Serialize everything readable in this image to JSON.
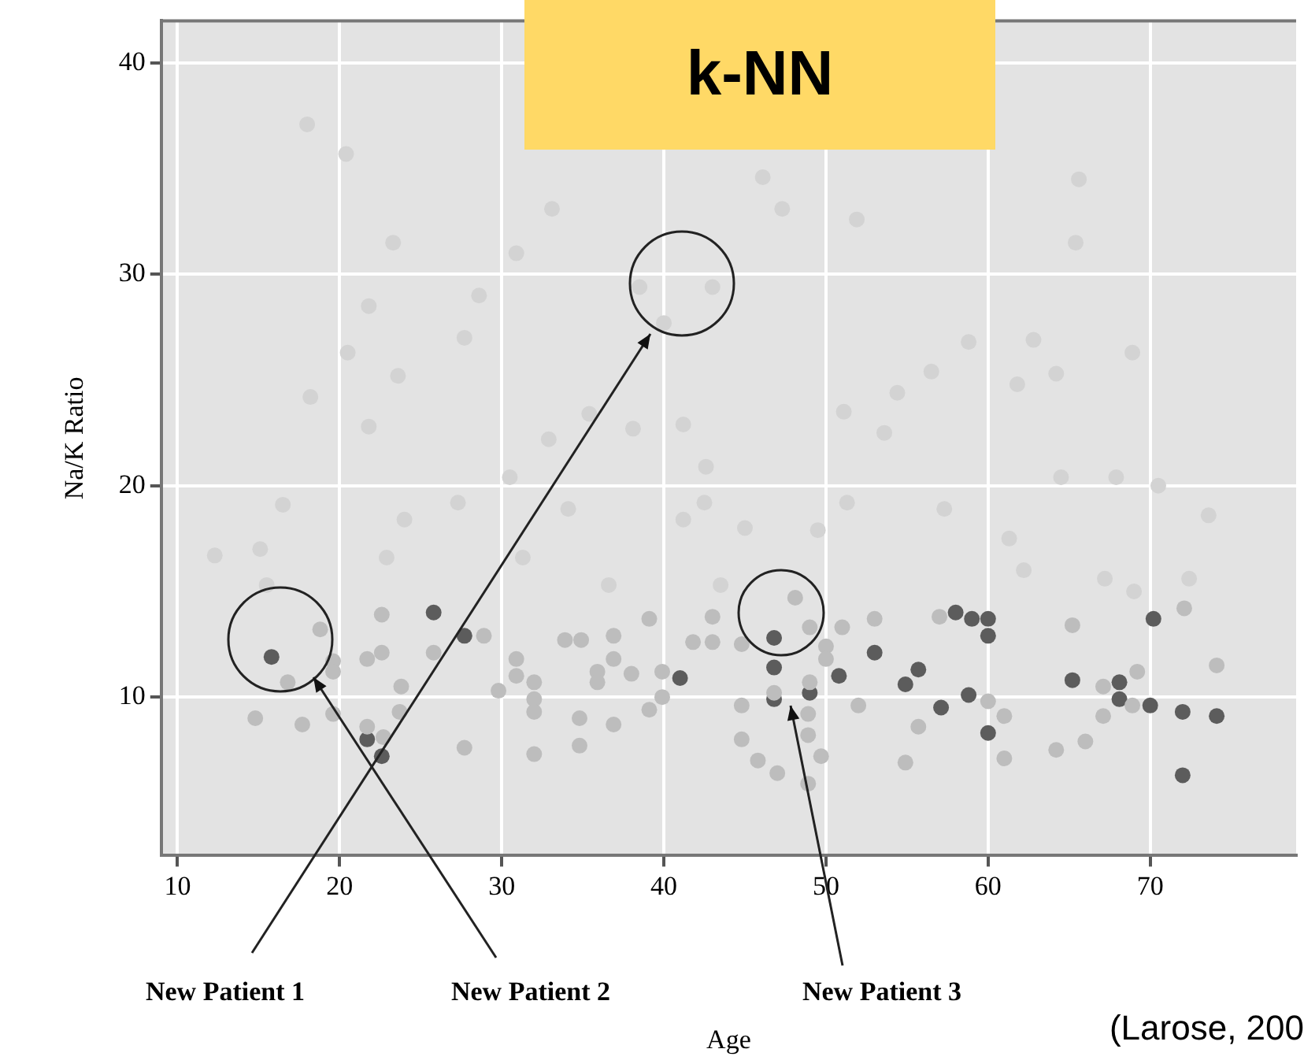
{
  "chart_data": {
    "type": "scatter",
    "title": "k-NN",
    "xlabel": "Age",
    "ylabel": "Na/K Ratio",
    "xlim": [
      9,
      79
    ],
    "ylim": [
      2.5,
      42
    ],
    "xticks": [
      10,
      20,
      30,
      40,
      50,
      60,
      70
    ],
    "yticks": [
      10,
      20,
      30,
      40
    ],
    "grid": true,
    "legend": false,
    "marker": "circle",
    "series": [
      {
        "color": "#d3d3d3",
        "x": [
          18.0,
          20.4,
          23.3,
          30.9,
          28.6,
          21.8,
          27.7,
          20.5,
          23.6,
          18.2,
          21.8,
          33.1,
          46.1,
          47.3,
          51.9,
          38.5,
          43.0,
          40.0,
          35.4,
          32.9,
          38.1,
          41.2,
          51.1,
          54.4,
          53.6,
          65.6,
          65.4,
          58.8,
          56.5,
          62.8,
          64.2,
          61.8,
          68.9,
          16.5,
          12.3,
          15.1,
          15.5,
          22.9,
          24.0,
          27.3,
          30.5,
          31.3,
          34.1,
          36.6,
          41.2,
          42.5,
          42.6,
          45.0,
          49.5,
          51.3,
          43.5,
          64.5,
          67.9,
          70.5,
          57.3,
          73.6,
          61.3,
          62.2,
          67.2,
          69.0,
          72.4
        ],
        "values": [
          37.1,
          35.7,
          31.5,
          31.0,
          29.0,
          28.5,
          27.0,
          26.3,
          25.2,
          24.2,
          22.8,
          33.1,
          34.6,
          33.1,
          32.6,
          29.4,
          29.4,
          27.7,
          23.4,
          22.2,
          22.7,
          22.9,
          23.5,
          24.4,
          22.5,
          34.5,
          31.5,
          26.8,
          25.4,
          26.9,
          25.3,
          24.8,
          26.3,
          19.1,
          16.7,
          17.0,
          15.3,
          16.6,
          18.4,
          19.2,
          20.4,
          16.6,
          18.9,
          15.3,
          18.4,
          19.2,
          20.9,
          18.0,
          17.9,
          19.2,
          15.3,
          20.4,
          20.4,
          20.0,
          18.9,
          18.6,
          17.5,
          16.0,
          15.6,
          15.0,
          15.6
        ]
      },
      {
        "color": "#bdbdbd",
        "x": [
          18.8,
          16.8,
          14.8,
          17.7,
          19.6,
          19.6,
          21.7,
          22.6,
          22.6,
          25.8,
          28.9,
          23.8,
          23.7,
          19.6,
          21.7,
          22.7,
          27.7,
          30.9,
          30.9,
          32.0,
          32.0,
          32.0,
          29.8,
          32.0,
          39.1,
          33.9,
          34.9,
          36.9,
          36.9,
          35.9,
          35.9,
          38.0,
          39.9,
          39.9,
          39.1,
          34.8,
          36.9,
          34.8,
          43.0,
          41.8,
          43.0,
          48.1,
          49.0,
          44.8,
          50.0,
          50.0,
          51.0,
          53.0,
          46.8,
          49.0,
          48.9,
          48.9,
          44.8,
          44.8,
          45.8,
          47.0,
          49.7,
          48.9,
          52.0,
          55.7,
          54.9,
          72.1,
          57.0,
          65.2,
          69.2,
          67.1,
          74.1,
          60.0,
          61.0,
          67.1,
          68.9,
          61.0,
          64.2,
          66.0
        ],
        "values": [
          13.2,
          10.7,
          9.0,
          8.7,
          11.7,
          11.2,
          11.8,
          13.9,
          12.1,
          12.1,
          12.9,
          10.5,
          9.3,
          9.2,
          8.6,
          8.1,
          7.6,
          11.8,
          11.0,
          10.7,
          9.9,
          9.3,
          10.3,
          7.3,
          13.7,
          12.7,
          12.7,
          12.9,
          11.8,
          11.2,
          10.7,
          11.1,
          11.2,
          10.0,
          9.4,
          9.0,
          8.7,
          7.7,
          13.8,
          12.6,
          12.6,
          14.7,
          13.3,
          12.5,
          12.4,
          11.8,
          13.3,
          13.7,
          10.2,
          10.7,
          9.2,
          8.2,
          9.6,
          8.0,
          7.0,
          6.4,
          7.2,
          5.9,
          9.6,
          8.6,
          6.9,
          14.2,
          13.8,
          13.4,
          11.2,
          10.5,
          11.5,
          9.8,
          9.1,
          9.1,
          9.6,
          7.1,
          7.5,
          7.9
        ]
      },
      {
        "color": "#5c5c5c",
        "x": [
          15.8,
          25.8,
          27.7,
          21.7,
          22.6,
          41.0,
          46.8,
          46.8,
          46.8,
          49.0,
          50.8,
          53.0,
          54.9,
          55.7,
          57.1,
          58.0,
          59.0,
          60.0,
          60.0,
          58.8,
          60.0,
          65.2,
          68.1,
          68.1,
          70.0,
          70.2,
          72.0,
          74.1,
          72.0
        ],
        "values": [
          11.9,
          14.0,
          12.9,
          8.0,
          7.2,
          10.9,
          12.8,
          11.4,
          9.9,
          10.2,
          11.0,
          12.1,
          10.6,
          11.3,
          9.5,
          14.0,
          13.7,
          13.7,
          12.9,
          10.1,
          8.3,
          10.8,
          10.7,
          9.9,
          9.6,
          13.7,
          9.3,
          9.1,
          6.3
        ]
      }
    ],
    "annotations": [
      "New Patient 1",
      "New Patient 2",
      "New Patient 3",
      "(Larose, 200"
    ]
  }
}
